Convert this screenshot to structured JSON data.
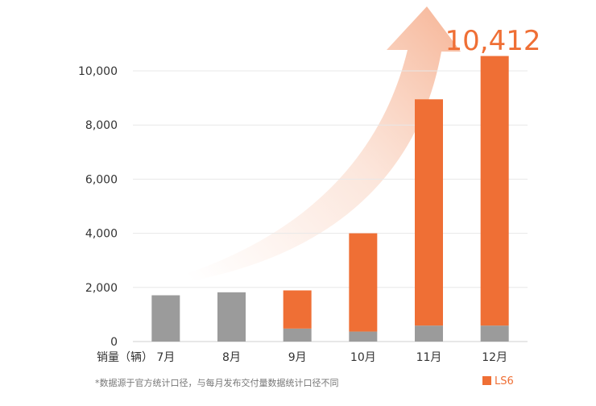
{
  "chart_data": {
    "type": "bar",
    "stacked": true,
    "categories": [
      "7月",
      "8月",
      "9月",
      "10月",
      "11月",
      "12月"
    ],
    "series": [
      {
        "values": [
          1710,
          1820,
          480,
          370,
          590,
          590
        ],
        "color": "#9b9b9b"
      },
      {
        "name": "LS6",
        "values": [
          0,
          0,
          1410,
          3630,
          8360,
          9960
        ],
        "color": "#ef6f35"
      }
    ],
    "xlabel": "销量（辆）",
    "ylim": [
      0,
      10000
    ],
    "yticks": [
      "0",
      "2,000",
      "4,000",
      "6,000",
      "8,000",
      "10,000"
    ],
    "grid": true,
    "legend_position": "bottom-right",
    "highlight_label": "10,412",
    "footnote": "*数据源于官方统计口径，与每月发布交付量数据统计口径不同",
    "decoration": "upward-trend-arrow"
  }
}
